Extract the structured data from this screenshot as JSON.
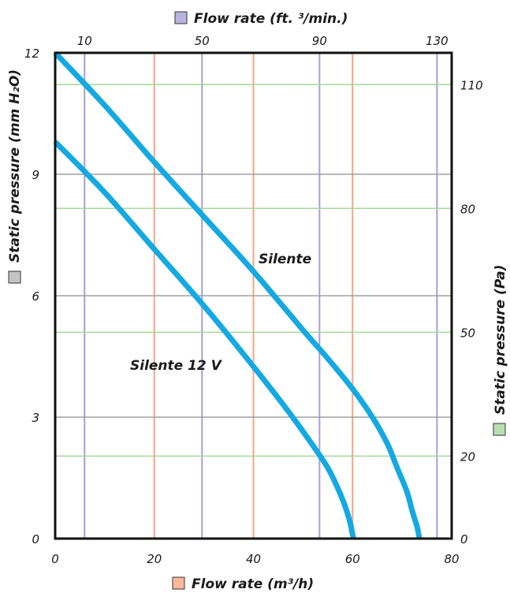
{
  "chart_data": {
    "type": "line",
    "top_axis": {
      "label": "Flow rate (ft. ³/min.)",
      "unit_key_color": "#b8b4e0",
      "ticks": [
        "10",
        "50",
        "90",
        "130"
      ],
      "tick_values": [
        10,
        50,
        90,
        130
      ],
      "range": [
        0,
        135
      ],
      "grid_color": "#a89ed6"
    },
    "bottom_axis": {
      "label": "Flow rate (m³/h)",
      "unit_key_color": "#f8b89a",
      "ticks": [
        "0",
        "20",
        "40",
        "60",
        "80"
      ],
      "tick_values": [
        0,
        20,
        40,
        60,
        80
      ],
      "range": [
        0,
        80
      ],
      "grid_color": "#f2a584"
    },
    "left_axis": {
      "label": "Static pressure (mm H₂O)",
      "unit_key_color": "#c4c4c4",
      "ticks": [
        "0",
        "3",
        "6",
        "9",
        "12"
      ],
      "tick_values": [
        0,
        3,
        6,
        9,
        12
      ],
      "range": [
        0,
        12
      ],
      "grid_color": "#a0a0a0"
    },
    "right_axis": {
      "label": "Static pressure (Pa)",
      "unit_key_color": "#b8e0b0",
      "ticks": [
        "0",
        "20",
        "50",
        "80",
        "110"
      ],
      "tick_values": [
        0,
        20,
        50,
        80,
        110
      ],
      "range": [
        0,
        117.7
      ],
      "grid_color": "#a6d89a"
    },
    "grid": true,
    "series": [
      {
        "name": "Silente",
        "color": "#14a9e2",
        "x": [
          0,
          10,
          20,
          30,
          40,
          50,
          55,
          60,
          64,
          67,
          69,
          71,
          72,
          73,
          73.5
        ],
        "y": [
          12,
          10.7,
          9.3,
          7.95,
          6.6,
          5.15,
          4.45,
          3.7,
          3.0,
          2.35,
          1.75,
          1.15,
          0.7,
          0.3,
          0
        ]
      },
      {
        "name": "Silente 12 V",
        "color": "#14a9e2",
        "x": [
          0,
          10,
          20,
          30,
          40,
          47,
          52,
          55,
          57,
          58.5,
          59.5,
          60,
          60.2
        ],
        "y": [
          9.8,
          8.55,
          7.15,
          5.75,
          4.25,
          3.15,
          2.3,
          1.75,
          1.25,
          0.8,
          0.4,
          0.1,
          0
        ]
      }
    ]
  }
}
